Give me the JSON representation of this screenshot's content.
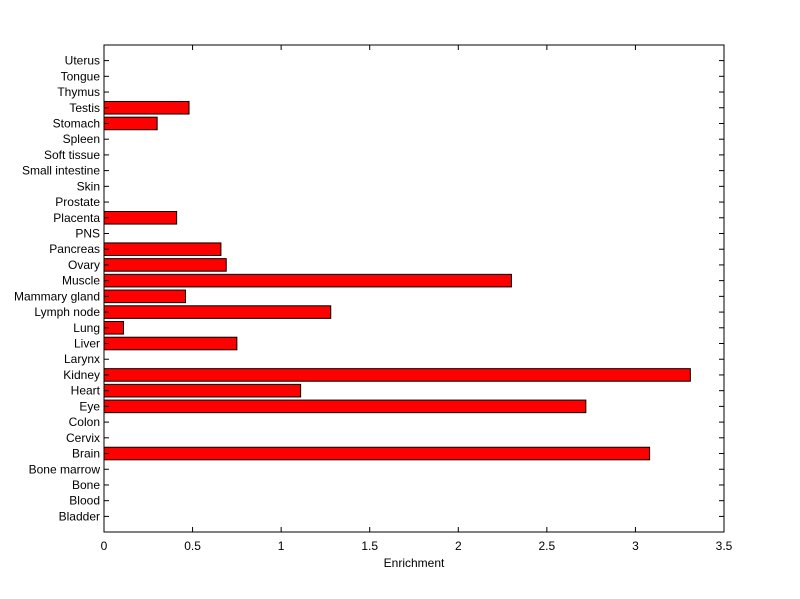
{
  "chart_data": {
    "type": "bar",
    "orientation": "horizontal",
    "categories": [
      "Bladder",
      "Blood",
      "Bone",
      "Bone marrow",
      "Brain",
      "Cervix",
      "Colon",
      "Eye",
      "Heart",
      "Kidney",
      "Larynx",
      "Liver",
      "Lung",
      "Lymph node",
      "Mammary gland",
      "Muscle",
      "Ovary",
      "Pancreas",
      "PNS",
      "Placenta",
      "Prostate",
      "Skin",
      "Small intestine",
      "Soft tissue",
      "Spleen",
      "Stomach",
      "Testis",
      "Thymus",
      "Tongue",
      "Uterus"
    ],
    "values": [
      0,
      0,
      0,
      0,
      3.08,
      0,
      0,
      2.72,
      1.11,
      3.31,
      0,
      0.75,
      0.11,
      1.28,
      0.46,
      2.3,
      0.69,
      0.66,
      0,
      0.41,
      0,
      0,
      0,
      0,
      0,
      0.3,
      0.48,
      0,
      0,
      0
    ],
    "xlabel": "Enrichment",
    "ylabel": "",
    "title": "",
    "xlim": [
      0,
      3.5
    ],
    "xticks": [
      "0",
      "0.5",
      "1",
      "1.5",
      "2",
      "2.5",
      "3",
      "3.5"
    ],
    "grid": false,
    "bar_color": "#ff0000",
    "edge_color": "#000000"
  }
}
